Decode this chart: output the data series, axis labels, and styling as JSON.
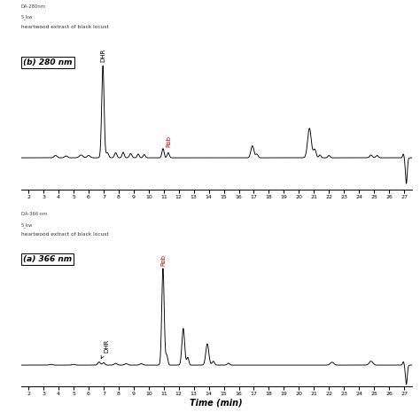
{
  "top_header1": "DA-280nm",
  "top_header2": "5_kw",
  "top_header3": "heartwood extract of black locust",
  "bot_header1": "DA-366 nm",
  "bot_header2": "5_kw",
  "bot_header3": "heartwood extract of black locust",
  "panel_b_label": "(b) 280 nm",
  "panel_a_label": "(a) 366 nm",
  "xlabel": "Time (min)",
  "xmin": 1.5,
  "xmax": 27.5,
  "background_color": "#ffffff",
  "line_color": "#000000",
  "label_color_red": "#cc0000",
  "label_color_black": "#000000"
}
